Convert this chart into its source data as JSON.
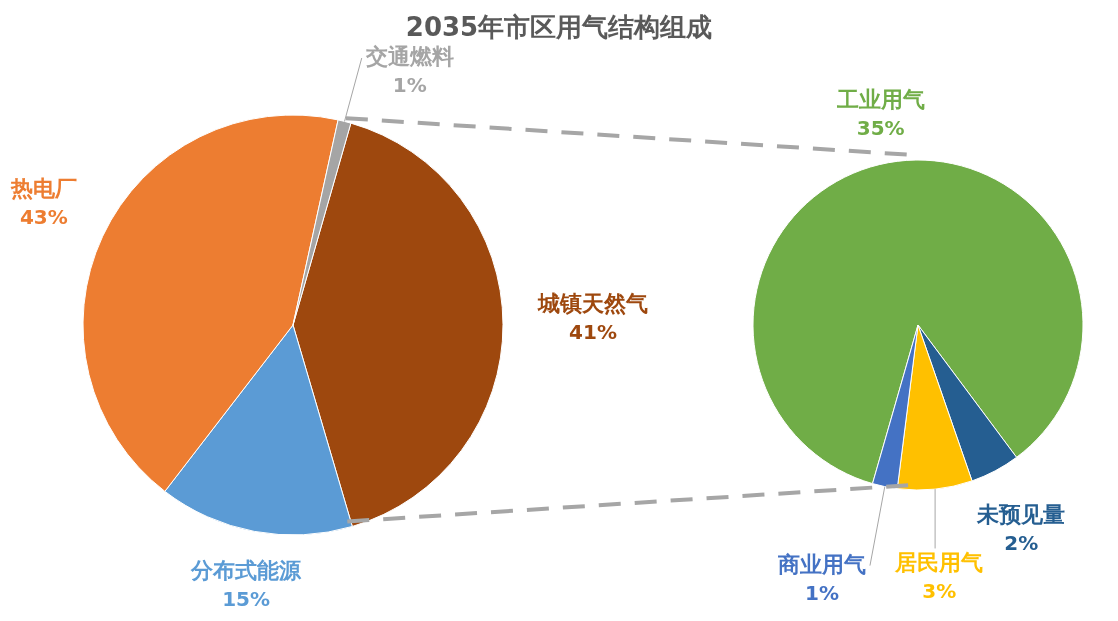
{
  "chart_data": [
    {
      "type": "pie",
      "title": "2035年市区用气结构组成",
      "categories": [
        "城镇天然气",
        "分布式能源",
        "热电厂",
        "交通燃料"
      ],
      "values": [
        41,
        15,
        43,
        1
      ],
      "value_labels": [
        "41%",
        "15%",
        "43%",
        "1%"
      ],
      "colors": [
        "#9e480e",
        "#5b9bd5",
        "#ed7d31",
        "#a5a5a5"
      ]
    },
    {
      "type": "pie",
      "categories": [
        "工业用气",
        "未预见量",
        "居民用气",
        "商业用气"
      ],
      "values": [
        35,
        2,
        3,
        1
      ],
      "value_labels": [
        "35%",
        "2%",
        "3%",
        "1%"
      ],
      "colors": [
        "#70ad47",
        "#255e91",
        "#ffc000",
        "#4472c4"
      ]
    }
  ]
}
